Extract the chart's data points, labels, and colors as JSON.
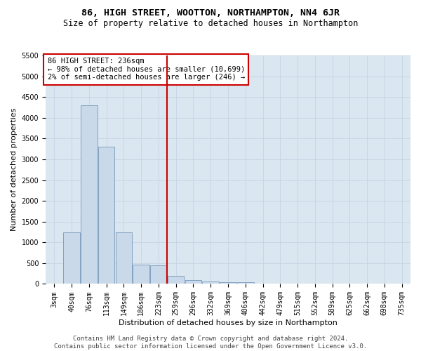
{
  "title": "86, HIGH STREET, WOOTTON, NORTHAMPTON, NN4 6JR",
  "subtitle": "Size of property relative to detached houses in Northampton",
  "xlabel": "Distribution of detached houses by size in Northampton",
  "ylabel": "Number of detached properties",
  "footer_line1": "Contains HM Land Registry data © Crown copyright and database right 2024.",
  "footer_line2": "Contains public sector information licensed under the Open Government Licence v3.0.",
  "categories": [
    "3sqm",
    "40sqm",
    "76sqm",
    "113sqm",
    "149sqm",
    "186sqm",
    "223sqm",
    "259sqm",
    "296sqm",
    "332sqm",
    "369sqm",
    "406sqm",
    "442sqm",
    "479sqm",
    "515sqm",
    "552sqm",
    "589sqm",
    "625sqm",
    "662sqm",
    "698sqm",
    "735sqm"
  ],
  "bar_values": [
    0,
    1250,
    4300,
    3300,
    1250,
    460,
    450,
    200,
    100,
    60,
    50,
    50,
    0,
    0,
    0,
    0,
    0,
    0,
    0,
    0,
    0
  ],
  "bar_color": "#c9d9e9",
  "bar_edgecolor": "#7799bb",
  "ylim": [
    0,
    5500
  ],
  "yticks": [
    0,
    500,
    1000,
    1500,
    2000,
    2500,
    3000,
    3500,
    4000,
    4500,
    5000,
    5500
  ],
  "grid_color": "#c5d5e5",
  "bg_color": "#dae6f0",
  "vline_color": "#cc0000",
  "vline_x": 6.5,
  "annotation_title": "86 HIGH STREET: 236sqm",
  "annotation_line1": "← 98% of detached houses are smaller (10,699)",
  "annotation_line2": "2% of semi-detached houses are larger (246) →",
  "title_fontsize": 9.5,
  "subtitle_fontsize": 8.5,
  "axis_label_fontsize": 8,
  "tick_fontsize": 7,
  "footer_fontsize": 6.5,
  "annot_fontsize": 7.5
}
